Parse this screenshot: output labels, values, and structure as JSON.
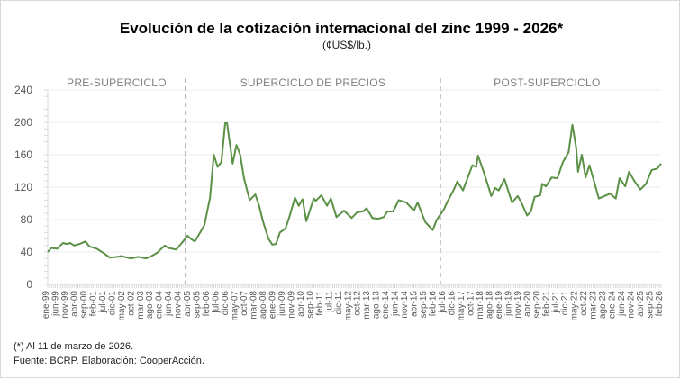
{
  "chart_data": {
    "type": "line",
    "title": "Evolución de la cotización internacional del zinc 1999 - 2026*",
    "subtitle": "(¢US$/lb.)",
    "xlabel": "",
    "ylabel": "",
    "ylim": [
      0,
      240
    ],
    "yticks": [
      "0",
      "20",
      "40",
      "60",
      "80",
      "100",
      "120",
      "140",
      "160",
      "180",
      "200",
      "220",
      "240"
    ],
    "ytick_labels": [
      "0",
      "40",
      "80",
      "120",
      "160",
      "200",
      "240"
    ],
    "grid": true,
    "line_color": "#5b9146",
    "x_tick_labels": [
      "ene-99",
      "jun-99",
      "nov-99",
      "abr-00",
      "sep-00",
      "feb-01",
      "jul-01",
      "dic-01",
      "may-02",
      "oct-02",
      "mar-03",
      "ago-03",
      "ene-04",
      "jun-04",
      "nov-04",
      "abr-05",
      "sep-05",
      "feb-06",
      "jul-06",
      "dic-06",
      "may-07",
      "oct-07",
      "mar-08",
      "ago-08",
      "ene-09",
      "jun-09",
      "nov-09",
      "abr-10",
      "sep-10",
      "feb-11",
      "jul-11",
      "dic-11",
      "may-12",
      "oct-12",
      "mar-13",
      "ago-13",
      "ene-14",
      "jun-14",
      "nov-14",
      "abr-15",
      "sep-15",
      "feb-16",
      "jul-16",
      "dic-16",
      "may-17",
      "oct-17",
      "mar-18",
      "ago-18",
      "ene-19",
      "jun-19",
      "nov-19",
      "abr-20",
      "sep-20",
      "feb-21",
      "jul-21",
      "dic-21",
      "may-22",
      "oct-22",
      "mar-23",
      "ago-23",
      "ene-24",
      "jun-24",
      "nov-24",
      "abr-25",
      "sep-25",
      "feb-26"
    ],
    "series": [
      {
        "points": [
          [
            "1999-01",
            40
          ],
          [
            "1999-03",
            45
          ],
          [
            "1999-06",
            44
          ],
          [
            "1999-09",
            51
          ],
          [
            "1999-11",
            50
          ],
          [
            "2000-01",
            51
          ],
          [
            "2000-03",
            48
          ],
          [
            "2000-06",
            50
          ],
          [
            "2000-09",
            53
          ],
          [
            "2000-11",
            47
          ],
          [
            "2001-03",
            44
          ],
          [
            "2001-07",
            38
          ],
          [
            "2001-10",
            33
          ],
          [
            "2002-02",
            34
          ],
          [
            "2002-04",
            35
          ],
          [
            "2002-09",
            32
          ],
          [
            "2003-01",
            34
          ],
          [
            "2003-05",
            32
          ],
          [
            "2003-08",
            35
          ],
          [
            "2003-11",
            39
          ],
          [
            "2004-03",
            48
          ],
          [
            "2004-05",
            45
          ],
          [
            "2004-09",
            43
          ],
          [
            "2004-12",
            51
          ],
          [
            "2005-03",
            60
          ],
          [
            "2005-05",
            56
          ],
          [
            "2005-07",
            53
          ],
          [
            "2005-12",
            73
          ],
          [
            "2006-03",
            107
          ],
          [
            "2006-05",
            160
          ],
          [
            "2006-07",
            145
          ],
          [
            "2006-09",
            151
          ],
          [
            "2006-11",
            199
          ],
          [
            "2006-12",
            199
          ],
          [
            "2007-03",
            149
          ],
          [
            "2007-05",
            172
          ],
          [
            "2007-07",
            160
          ],
          [
            "2007-09",
            131
          ],
          [
            "2007-12",
            104
          ],
          [
            "2008-03",
            111
          ],
          [
            "2008-05",
            97
          ],
          [
            "2008-07",
            78
          ],
          [
            "2008-10",
            56
          ],
          [
            "2008-12",
            49
          ],
          [
            "2009-02",
            50
          ],
          [
            "2009-04",
            64
          ],
          [
            "2009-07",
            69
          ],
          [
            "2009-09",
            83
          ],
          [
            "2009-12",
            107
          ],
          [
            "2010-02",
            97
          ],
          [
            "2010-04",
            105
          ],
          [
            "2010-06",
            78
          ],
          [
            "2010-10",
            106
          ],
          [
            "2010-11",
            103
          ],
          [
            "2011-02",
            110
          ],
          [
            "2011-05",
            97
          ],
          [
            "2011-07",
            106
          ],
          [
            "2011-10",
            83
          ],
          [
            "2012-02",
            91
          ],
          [
            "2012-06",
            82
          ],
          [
            "2012-09",
            89
          ],
          [
            "2012-12",
            90
          ],
          [
            "2013-02",
            94
          ],
          [
            "2013-05",
            82
          ],
          [
            "2013-08",
            81
          ],
          [
            "2013-11",
            83
          ],
          [
            "2014-01",
            90
          ],
          [
            "2014-04",
            90
          ],
          [
            "2014-07",
            104
          ],
          [
            "2014-11",
            101
          ],
          [
            "2015-03",
            91
          ],
          [
            "2015-05",
            101
          ],
          [
            "2015-09",
            77
          ],
          [
            "2016-01",
            67
          ],
          [
            "2016-03",
            79
          ],
          [
            "2016-07",
            93
          ],
          [
            "2016-09",
            103
          ],
          [
            "2016-12",
            116
          ],
          [
            "2017-02",
            127
          ],
          [
            "2017-05",
            116
          ],
          [
            "2017-10",
            147
          ],
          [
            "2017-12",
            145
          ],
          [
            "2018-01",
            159
          ],
          [
            "2018-04",
            139
          ],
          [
            "2018-07",
            117
          ],
          [
            "2018-08",
            109
          ],
          [
            "2018-10",
            119
          ],
          [
            "2018-12",
            116
          ],
          [
            "2019-03",
            130
          ],
          [
            "2019-07",
            101
          ],
          [
            "2019-10",
            109
          ],
          [
            "2019-12",
            101
          ],
          [
            "2020-03",
            85
          ],
          [
            "2020-05",
            90
          ],
          [
            "2020-07",
            108
          ],
          [
            "2020-10",
            110
          ],
          [
            "2020-11",
            124
          ],
          [
            "2021-01",
            121
          ],
          [
            "2021-04",
            132
          ],
          [
            "2021-07",
            131
          ],
          [
            "2021-10",
            151
          ],
          [
            "2022-01",
            163
          ],
          [
            "2022-03",
            197
          ],
          [
            "2022-05",
            169
          ],
          [
            "2022-06",
            139
          ],
          [
            "2022-08",
            160
          ],
          [
            "2022-10",
            132
          ],
          [
            "2022-12",
            147
          ],
          [
            "2023-02",
            131
          ],
          [
            "2023-05",
            106
          ],
          [
            "2023-08",
            109
          ],
          [
            "2023-11",
            112
          ],
          [
            "2024-02",
            106
          ],
          [
            "2024-04",
            131
          ],
          [
            "2024-07",
            121
          ],
          [
            "2024-09",
            139
          ],
          [
            "2024-12",
            127
          ],
          [
            "2025-03",
            117
          ],
          [
            "2025-06",
            124
          ],
          [
            "2025-09",
            141
          ],
          [
            "2025-12",
            143
          ],
          [
            "2026-02",
            149
          ]
        ]
      }
    ],
    "periods": [
      {
        "label": "PRE-SUPERCICLO",
        "start": "1999-01",
        "end": "2005-02"
      },
      {
        "label": "SUPERCICLO DE PRECIOS",
        "start": "2005-02",
        "end": "2016-05"
      },
      {
        "label": "POST-SUPERCICLO",
        "start": "2016-05",
        "end": "2026-02"
      }
    ]
  },
  "footnotes": {
    "note": "(*) Al 11 de marzo de 2026.",
    "source": "Fuente: BCRP. Elaboración: CooperAcción."
  }
}
